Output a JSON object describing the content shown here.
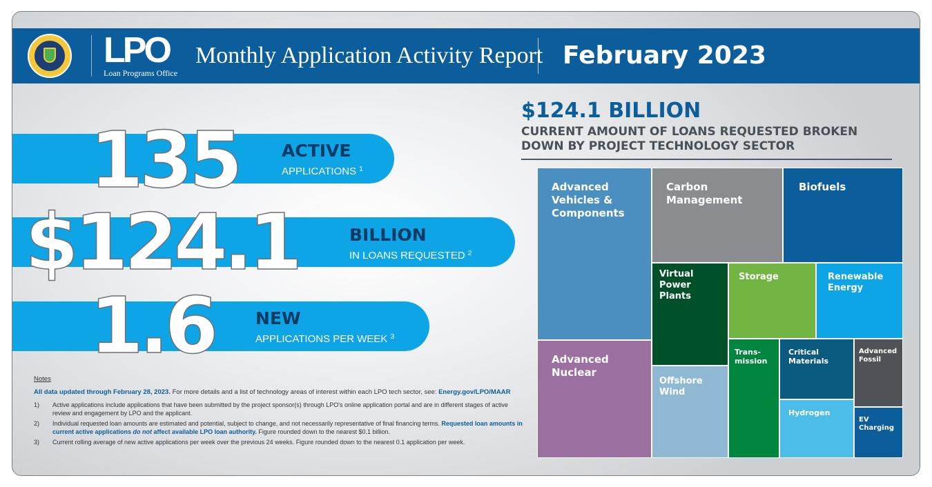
{
  "header": {
    "logo_text": "LPO",
    "logo_subtitle": "Loan Programs Office",
    "title": "Monthly Application Activity Report",
    "month": "February 2023"
  },
  "stats": [
    {
      "number": "135",
      "headline": "ACTIVE",
      "subtitle": "APPLICATIONS",
      "note": "1"
    },
    {
      "number": "$124.1",
      "headline": "BILLION",
      "subtitle": "IN LOANS REQUESTED",
      "note": "2"
    },
    {
      "number": "1.6",
      "headline": "NEW",
      "subtitle": "APPLICATIONS PER WEEK",
      "note": "3"
    }
  ],
  "notes": {
    "title": "Notes",
    "lead_bold": "All data updated through February 28, 2023.",
    "lead_text": " For more details and a list of technology areas of interest within each LPO tech sector, see: ",
    "lead_link": "Energy.gov/LPO/MAAR",
    "items": [
      {
        "num": "1)",
        "text": "Active applications include applications that have been submitted by the project sponsor(s) through LPO's online application portal and are in different stages of active review and engagement by LPO and the applicant."
      },
      {
        "num": "2)",
        "text_a": "Individual requested loan amounts are estimated and potential, subject to change, and not necessarily representative of final financing terms. ",
        "bold_a": "Requested loan amounts in current active applications ",
        "italic_b": "do not",
        "bold_b": " affect available LPO loan authority.",
        "text_b": " Figure rounded down to the nearest $0.1 billion."
      },
      {
        "num": "3)",
        "text": "Current rolling average of new active applications per week over the previous 24 weeks. Figure rounded down to the nearest 0.1 application per week."
      }
    ]
  },
  "summary": {
    "amount": "$124.1 BILLION",
    "caption": "CURRENT AMOUNT OF LOANS REQUESTED BROKEN DOWN BY PROJECT TECHNOLOGY SECTOR"
  },
  "treemap": {
    "sectors": [
      {
        "label": "Advanced\nVehicles &\nComponents",
        "color": "#4b8fc0"
      },
      {
        "label": "Advanced\nNuclear",
        "color": "#9b6fa0"
      },
      {
        "label": "Carbon\nManagement",
        "color": "#8a8c8f"
      },
      {
        "label": "Biofuels",
        "color": "#0b5e9b"
      },
      {
        "label": "Virtual\nPower\nPlants",
        "color": "#00512a"
      },
      {
        "label": "Offshore\nWind",
        "color": "#8fb9d3"
      },
      {
        "label": "Storage",
        "color": "#73b543"
      },
      {
        "label": "Renewable\nEnergy",
        "color": "#0ea5e6"
      },
      {
        "label": "Trans-\nmission",
        "color": "#00853e"
      },
      {
        "label": "Critical\nMaterials",
        "color": "#0b5a80"
      },
      {
        "label": "Advanced\nFossil",
        "color": "#4f5257"
      },
      {
        "label": "Hydrogen",
        "color": "#4cbce8"
      },
      {
        "label": "EV\nCharging",
        "color": "#0b5e9b"
      }
    ]
  }
}
